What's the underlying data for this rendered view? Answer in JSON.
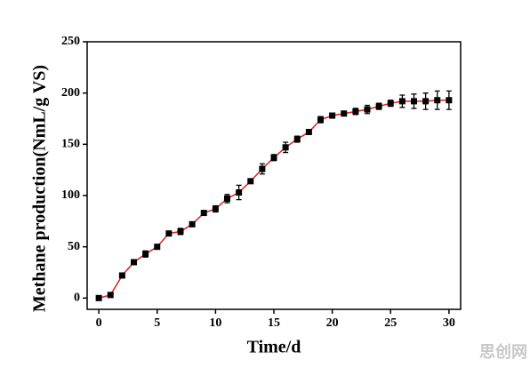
{
  "chart_data": {
    "type": "line",
    "x_label": "Time/d",
    "y_label": "Methane production(NmL/g VS)",
    "x": [
      0,
      1,
      2,
      3,
      4,
      5,
      6,
      7,
      8,
      9,
      10,
      11,
      12,
      13,
      14,
      15,
      16,
      17,
      18,
      19,
      20,
      21,
      22,
      23,
      24,
      25,
      26,
      27,
      28,
      29,
      30
    ],
    "series": [
      {
        "color": "#e02020",
        "marker_color": "#000000",
        "values": [
          0,
          3,
          22,
          35,
          43,
          50,
          63,
          65,
          72,
          83,
          87,
          97,
          103,
          114,
          126,
          137,
          147,
          155,
          162,
          174,
          178,
          180,
          182,
          184,
          187,
          190,
          192,
          192,
          192,
          193,
          193
        ],
        "errors": [
          1,
          1,
          1.5,
          2,
          3,
          2,
          2,
          3,
          2,
          2,
          3,
          4,
          7,
          2,
          5,
          3,
          5,
          3,
          2,
          3,
          2,
          2,
          3,
          4,
          3,
          3,
          6,
          7,
          8,
          9,
          9
        ]
      }
    ],
    "xlim": [
      -1,
      31
    ],
    "xticks": [
      0,
      5,
      10,
      15,
      20,
      25,
      30
    ],
    "ylim": [
      -11,
      250
    ],
    "yticks": [
      0,
      50,
      100,
      150,
      200,
      250
    ],
    "watermark": "思创网"
  }
}
